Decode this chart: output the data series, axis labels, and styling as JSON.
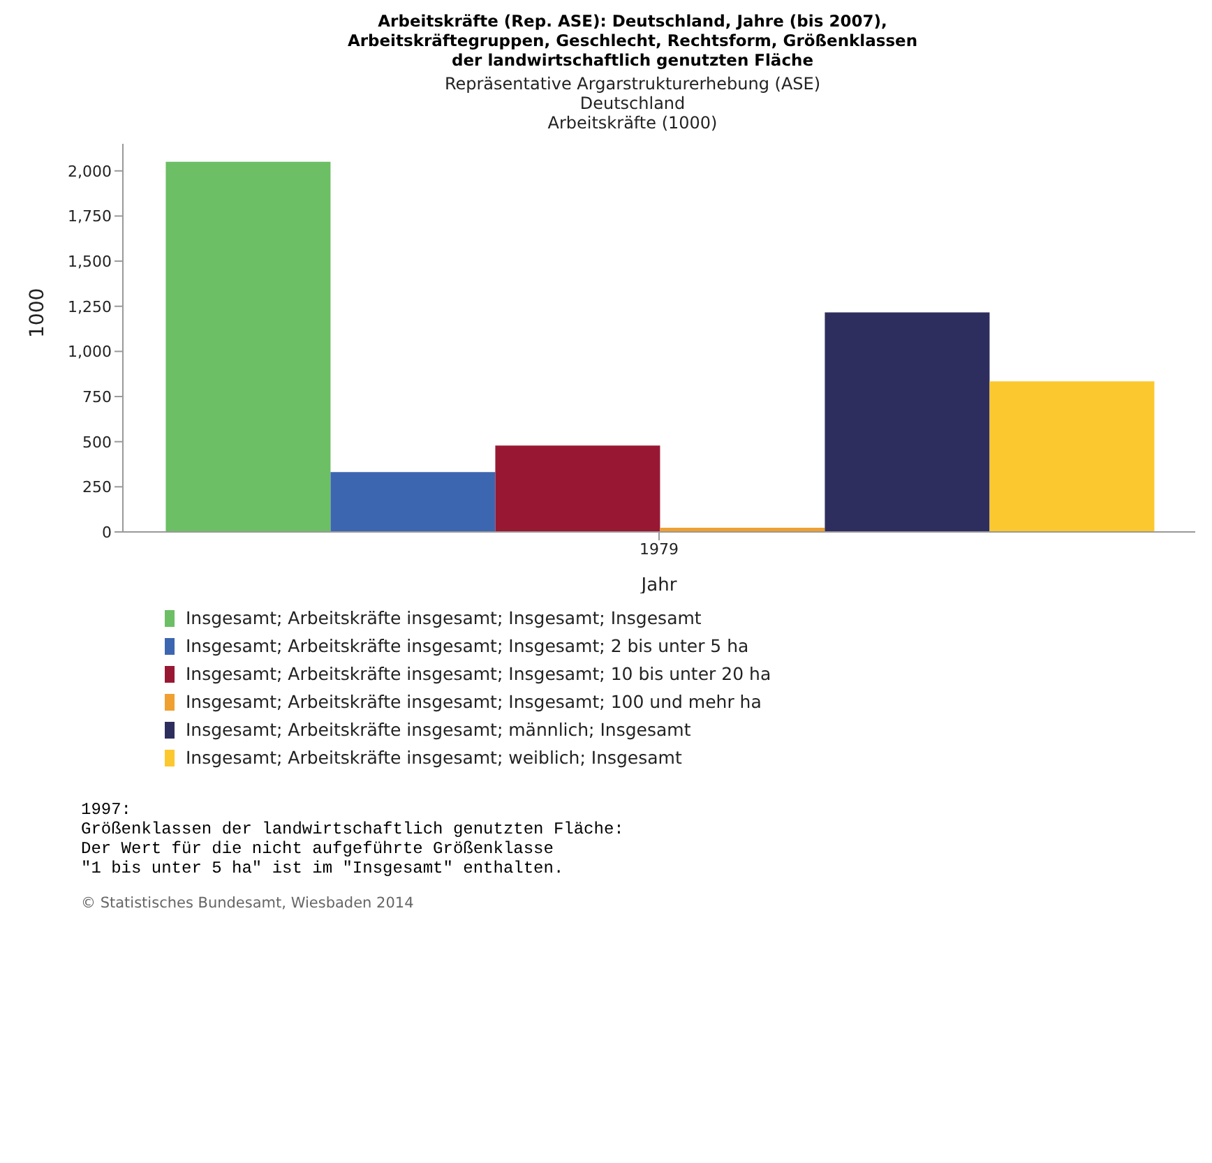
{
  "chart_data": {
    "type": "bar",
    "title": "Arbeitskräfte (Rep. ASE): Deutschland, Jahre (bis 2007),\nArbeitskräftegruppen, Geschlecht, Rechtsform, Größenklassen\nder landwirtschaftlich genutzten Fläche",
    "subtitle": "Repräsentative Argarstrukturerhebung (ASE)\nDeutschland\nArbeitskräfte (1000)",
    "xlabel": "Jahr",
    "ylabel": "1000",
    "categories": [
      "1979"
    ],
    "series": [
      {
        "name": "Insgesamt; Arbeitskräfte insgesamt; Insgesamt; Insgesamt",
        "color": "#6cbf64",
        "values": [
          2050
        ]
      },
      {
        "name": "Insgesamt; Arbeitskräfte insgesamt; Insgesamt; 2 bis unter 5 ha",
        "color": "#3d66b0",
        "values": [
          332
        ]
      },
      {
        "name": "Insgesamt; Arbeitskräfte insgesamt; Insgesamt; 10 bis unter 20 ha",
        "color": "#981833",
        "values": [
          479
        ]
      },
      {
        "name": "Insgesamt; Arbeitskräfte insgesamt; Insgesamt; 100 und mehr ha",
        "color": "#f0a030",
        "values": [
          23
        ]
      },
      {
        "name": "Insgesamt; Arbeitskräfte insgesamt; männlich; Insgesamt",
        "color": "#2e2e5e",
        "values": [
          1216
        ]
      },
      {
        "name": "Insgesamt; Arbeitskräfte insgesamt; weiblich; Insgesamt",
        "color": "#fcc82f",
        "values": [
          834
        ]
      }
    ],
    "ylim": [
      0,
      2150
    ],
    "yticks": [
      {
        "value": 0,
        "label": "0"
      },
      {
        "value": 250,
        "label": "250"
      },
      {
        "value": 500,
        "label": "500"
      },
      {
        "value": 750,
        "label": "750"
      },
      {
        "value": 1000,
        "label": "1,000"
      },
      {
        "value": 1250,
        "label": "1,250"
      },
      {
        "value": 1500,
        "label": "1,500"
      },
      {
        "value": 1750,
        "label": "1,750"
      },
      {
        "value": 2000,
        "label": "2,000"
      }
    ],
    "legend": "bottom left",
    "annotations": [
      "1997:\nGrößenklassen der landwirtschaftlich genutzten Fläche:\nDer Wert für die nicht aufgeführte Größenklasse\n\"1 bis unter 5 ha\" ist im \"Insgesamt\" enthalten.",
      "© Statistisches Bundesamt, Wiesbaden 2014"
    ]
  }
}
